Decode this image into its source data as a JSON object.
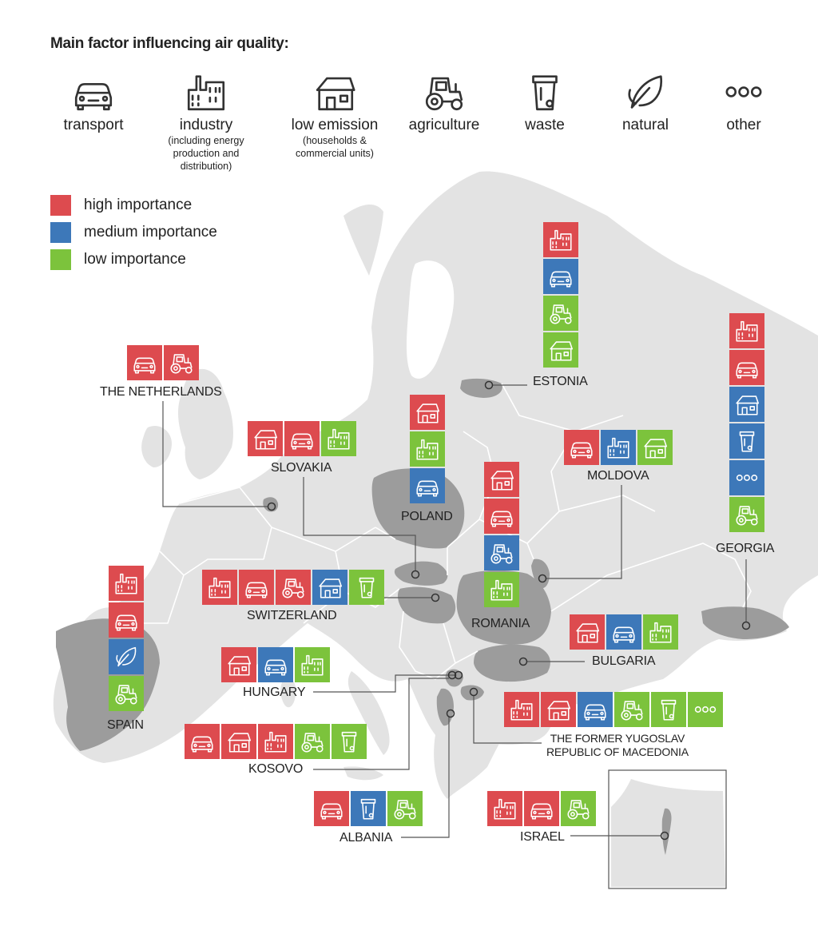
{
  "title": "Main factor influencing air quality:",
  "colors": {
    "high": "#dd4b4f",
    "medium": "#3d78b9",
    "low": "#7cc33c",
    "land": "#e3e3e3",
    "highlight": "#9c9c9c",
    "sea": "#ffffff"
  },
  "categories": [
    {
      "key": "transport",
      "label": "transport",
      "sub": "",
      "icon": "car-icon"
    },
    {
      "key": "industry",
      "label": "industry",
      "sub": "(including energy production and distribution)",
      "icon": "factory-icon"
    },
    {
      "key": "low_emission",
      "label": "low emission",
      "sub": "(households & commercial units)",
      "icon": "house-icon"
    },
    {
      "key": "agriculture",
      "label": "agriculture",
      "sub": "",
      "icon": "tractor-icon"
    },
    {
      "key": "waste",
      "label": "waste",
      "sub": "",
      "icon": "bin-icon"
    },
    {
      "key": "natural",
      "label": "natural",
      "sub": "",
      "icon": "leaf-icon"
    },
    {
      "key": "other",
      "label": "other",
      "sub": "",
      "icon": "dots-icon"
    }
  ],
  "legend": [
    {
      "level": "high",
      "label": "high importance"
    },
    {
      "level": "medium",
      "label": "medium importance"
    },
    {
      "level": "low",
      "label": "low importance"
    }
  ],
  "countries": [
    {
      "name": "THE NETHERLANDS",
      "factors": [
        [
          "transport",
          "high"
        ],
        [
          "agriculture",
          "high"
        ]
      ]
    },
    {
      "name": "ESTONIA",
      "factors": [
        [
          "industry",
          "high"
        ],
        [
          "transport",
          "medium"
        ],
        [
          "agriculture",
          "low"
        ],
        [
          "low_emission",
          "low"
        ]
      ]
    },
    {
      "name": "GEORGIA",
      "factors": [
        [
          "industry",
          "high"
        ],
        [
          "transport",
          "high"
        ],
        [
          "low_emission",
          "medium"
        ],
        [
          "waste",
          "medium"
        ],
        [
          "other",
          "medium"
        ],
        [
          "agriculture",
          "low"
        ]
      ]
    },
    {
      "name": "SLOVAKIA",
      "factors": [
        [
          "low_emission",
          "high"
        ],
        [
          "transport",
          "high"
        ],
        [
          "industry",
          "low"
        ]
      ]
    },
    {
      "name": "POLAND",
      "factors": [
        [
          "low_emission",
          "high"
        ],
        [
          "industry",
          "low"
        ],
        [
          "transport",
          "medium"
        ]
      ]
    },
    {
      "name": "MOLDOVA",
      "factors": [
        [
          "transport",
          "high"
        ],
        [
          "industry",
          "medium"
        ],
        [
          "low_emission",
          "low"
        ]
      ]
    },
    {
      "name": "ROMANIA",
      "factors": [
        [
          "low_emission",
          "high"
        ],
        [
          "transport",
          "high"
        ],
        [
          "agriculture",
          "medium"
        ],
        [
          "industry",
          "low"
        ]
      ]
    },
    {
      "name": "SPAIN",
      "factors": [
        [
          "industry",
          "high"
        ],
        [
          "transport",
          "high"
        ],
        [
          "natural",
          "medium"
        ],
        [
          "agriculture",
          "low"
        ]
      ]
    },
    {
      "name": "SWITZERLAND",
      "factors": [
        [
          "industry",
          "high"
        ],
        [
          "transport",
          "high"
        ],
        [
          "agriculture",
          "high"
        ],
        [
          "low_emission",
          "medium"
        ],
        [
          "waste",
          "low"
        ]
      ]
    },
    {
      "name": "BULGARIA",
      "factors": [
        [
          "low_emission",
          "high"
        ],
        [
          "transport",
          "medium"
        ],
        [
          "industry",
          "low"
        ]
      ]
    },
    {
      "name": "HUNGARY",
      "factors": [
        [
          "low_emission",
          "high"
        ],
        [
          "transport",
          "medium"
        ],
        [
          "industry",
          "low"
        ]
      ]
    },
    {
      "name": "THE FORMER YUGOSLAV REPUBLIC OF MACEDONIA",
      "lines": [
        "THE FORMER YUGOSLAV",
        "REPUBLIC OF MACEDONIA"
      ],
      "factors": [
        [
          "industry",
          "high"
        ],
        [
          "low_emission",
          "high"
        ],
        [
          "transport",
          "medium"
        ],
        [
          "agriculture",
          "low"
        ],
        [
          "waste",
          "low"
        ],
        [
          "other",
          "low"
        ]
      ]
    },
    {
      "name": "KOSOVO",
      "factors": [
        [
          "transport",
          "high"
        ],
        [
          "low_emission",
          "high"
        ],
        [
          "industry",
          "high"
        ],
        [
          "agriculture",
          "low"
        ],
        [
          "waste",
          "low"
        ]
      ]
    },
    {
      "name": "ALBANIA",
      "factors": [
        [
          "transport",
          "high"
        ],
        [
          "waste",
          "medium"
        ],
        [
          "agriculture",
          "low"
        ]
      ]
    },
    {
      "name": "ISRAEL",
      "factors": [
        [
          "industry",
          "high"
        ],
        [
          "transport",
          "high"
        ],
        [
          "agriculture",
          "low"
        ]
      ]
    }
  ]
}
